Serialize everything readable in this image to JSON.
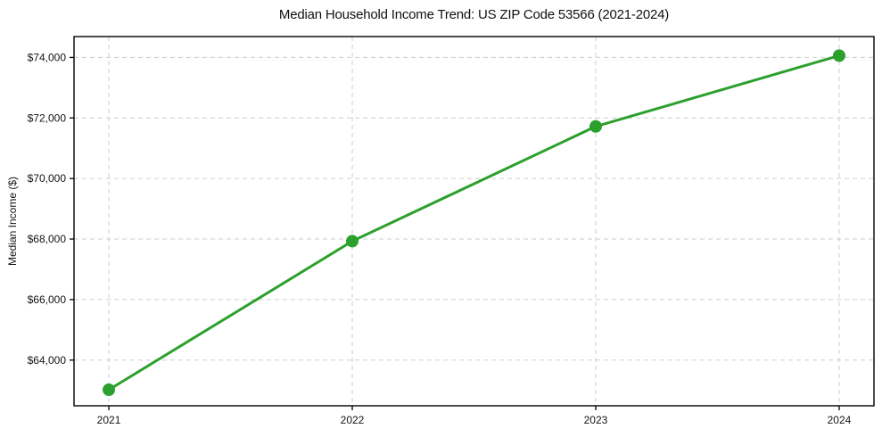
{
  "figure": {
    "background": "#ffffff"
  },
  "chart_data": {
    "type": "line",
    "title": "Median Household Income Trend: US ZIP Code 53566 (2021-2024)",
    "xlabel": "",
    "ylabel": "Median Income ($)",
    "x": [
      2021,
      2022,
      2023,
      2024
    ],
    "values": [
      63020,
      67930,
      71720,
      74060
    ],
    "xticks": {
      "values": [
        2021,
        2022,
        2023,
        2024
      ],
      "labels": [
        "2021",
        "2022",
        "2023",
        "2024"
      ]
    },
    "yticks": {
      "values": [
        64000,
        66000,
        68000,
        70000,
        72000,
        74000
      ],
      "labels": [
        "$64,000",
        "$66,000",
        "$68,000",
        "$70,000",
        "$72,000",
        "$74,000"
      ]
    },
    "xlim": [
      2020.857,
      2024.143
    ],
    "ylim": [
      62490,
      74690
    ],
    "line_color": "#2ca02c",
    "marker": "circle",
    "grid": {
      "visible": true,
      "style": "dashed",
      "color": "#cdcdcd"
    },
    "axes_color": "#000000",
    "legend": {
      "visible": false
    }
  }
}
